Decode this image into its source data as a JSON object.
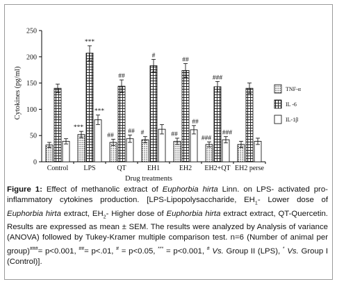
{
  "chart_data": {
    "type": "bar",
    "categories": [
      "Control",
      "LPS",
      "QT",
      "EH1",
      "EH2",
      "EH2+QT",
      "EH2 perse"
    ],
    "xlabel": "Drug treatments",
    "ylabel": "Cytokines (pg/ml)",
    "ylim": [
      0,
      250
    ],
    "yticks": [
      0,
      50,
      100,
      150,
      200,
      250
    ],
    "grid": false,
    "legend_position": "right",
    "series": [
      {
        "name": "TNF-α",
        "pattern": "dots",
        "values": [
          32,
          52,
          37,
          42,
          39,
          33,
          33
        ],
        "errors": [
          5,
          6,
          6,
          6,
          6,
          5,
          6
        ],
        "labels": [
          "",
          "***",
          "##",
          "#",
          "##",
          "###",
          ""
        ]
      },
      {
        "name": "IL -6",
        "pattern": "crosshatch",
        "values": [
          140,
          207,
          144,
          183,
          174,
          143,
          140
        ],
        "errors": [
          8,
          14,
          12,
          12,
          13,
          10,
          10
        ],
        "labels": [
          "",
          "***",
          "##",
          "#",
          "##",
          "###",
          ""
        ]
      },
      {
        "name": "IL-1β",
        "pattern": "white",
        "values": [
          39,
          80,
          44,
          62,
          61,
          42,
          39
        ],
        "errors": [
          5,
          9,
          7,
          9,
          8,
          6,
          6
        ],
        "labels": [
          "",
          "***",
          "##",
          "",
          "##",
          "###",
          ""
        ]
      }
    ]
  },
  "caption": {
    "label": "Figure 1:",
    "parts": [
      " Effect of methanolic extract of ",
      "Euphorbia hirta",
      " Linn. on LPS- activated pro-inflammatory cytokines production. [LPS-Lipopolysaccharide, EH",
      "1",
      "- Lower dose of ",
      "Euphorbia hirta",
      " extract, EH",
      "2",
      "- Higher dose of ",
      "Euphorbia hirta",
      " extract extract, QT-Quercetin. Results are expressed as mean ± SEM. The results were analyzed by Analysis of variance (ANOVA) followed by Tukey-Kramer multiple comparison test. n=6 (Number of animal per group)",
      "###",
      "= p<0.001, ",
      "##",
      "= p<.01, ",
      "#",
      " = p<0.05, ",
      "***",
      " = p<0.001, ",
      "#",
      " ",
      "Vs.",
      " Group II (LPS), ",
      "*",
      "  ",
      "Vs.",
      " Group I (Control)]."
    ]
  }
}
